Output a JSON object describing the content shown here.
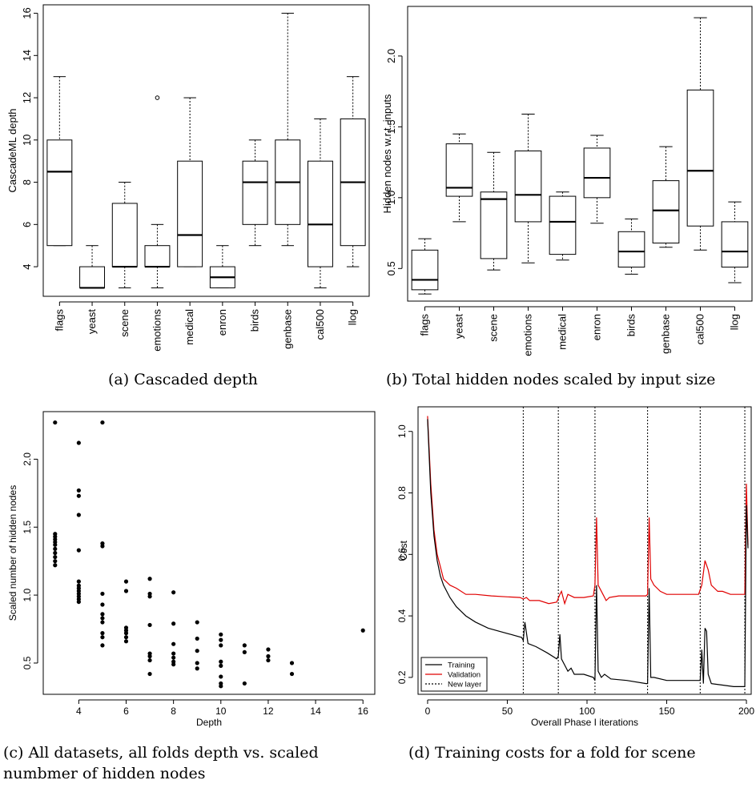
{
  "captions": {
    "a": "(a) Cascaded depth",
    "b": "(b) Total hidden nodes scaled by input size",
    "c_line1": "(c) All datasets, all folds depth vs. scaled",
    "c_line2": "numbmer of hidden nodes",
    "d": "(d) Training costs for a fold for scene"
  },
  "chart_data": [
    {
      "id": "a",
      "type": "boxplot",
      "title": "",
      "xlabel": "",
      "ylabel": "CascadeML depth",
      "ylim": [
        2.6,
        16.4
      ],
      "yticks": [
        4,
        6,
        8,
        10,
        12,
        14,
        16
      ],
      "categories": [
        "flags",
        "yeast",
        "scene",
        "emotions",
        "medical",
        "enron",
        "birds",
        "genbase",
        "cal500",
        "llog"
      ],
      "boxes": [
        {
          "min": 5,
          "q1": 5,
          "median": 8.5,
          "q3": 10,
          "max": 13
        },
        {
          "min": 3,
          "q1": 3,
          "median": 3,
          "q3": 4,
          "max": 5
        },
        {
          "min": 3,
          "q1": 4,
          "median": 4,
          "q3": 7,
          "max": 8
        },
        {
          "min": 3,
          "q1": 4,
          "median": 4,
          "q3": 5,
          "max": 6,
          "outliers": [
            12
          ]
        },
        {
          "min": 4,
          "q1": 4,
          "median": 5.5,
          "q3": 9,
          "max": 12
        },
        {
          "min": 3,
          "q1": 3,
          "median": 3.5,
          "q3": 4,
          "max": 5
        },
        {
          "min": 5,
          "q1": 6,
          "median": 8,
          "q3": 9,
          "max": 10
        },
        {
          "min": 5,
          "q1": 6,
          "median": 8,
          "q3": 10,
          "max": 16
        },
        {
          "min": 3,
          "q1": 4,
          "median": 6,
          "q3": 9,
          "max": 11
        },
        {
          "min": 4,
          "q1": 5,
          "median": 8,
          "q3": 11,
          "max": 13
        }
      ]
    },
    {
      "id": "b",
      "type": "boxplot",
      "title": "",
      "xlabel": "",
      "ylabel": "Hidden nodes w.r.t. inputs",
      "ylim": [
        0.27,
        2.35
      ],
      "yticks": [
        0.5,
        1.0,
        1.5,
        2.0
      ],
      "ytick_labels": [
        "0.5",
        "1.0",
        "1.5",
        "2.0"
      ],
      "categories": [
        "flags",
        "yeast",
        "scene",
        "emotions",
        "medical",
        "enron",
        "birds",
        "genbase",
        "cal500",
        "llog"
      ],
      "boxes": [
        {
          "min": 0.32,
          "q1": 0.35,
          "median": 0.42,
          "q3": 0.63,
          "max": 0.71
        },
        {
          "min": 0.83,
          "q1": 1.01,
          "median": 1.07,
          "q3": 1.38,
          "max": 1.45
        },
        {
          "min": 0.49,
          "q1": 0.57,
          "median": 0.99,
          "q3": 1.04,
          "max": 1.32
        },
        {
          "min": 0.54,
          "q1": 0.83,
          "median": 1.02,
          "q3": 1.33,
          "max": 1.59
        },
        {
          "min": 0.56,
          "q1": 0.6,
          "median": 0.83,
          "q3": 1.01,
          "max": 1.04
        },
        {
          "min": 0.82,
          "q1": 1.0,
          "median": 1.14,
          "q3": 1.35,
          "max": 1.44
        },
        {
          "min": 0.46,
          "q1": 0.51,
          "median": 0.62,
          "q3": 0.76,
          "max": 0.85
        },
        {
          "min": 0.65,
          "q1": 0.68,
          "median": 0.91,
          "q3": 1.12,
          "max": 1.36
        },
        {
          "min": 0.63,
          "q1": 0.8,
          "median": 1.19,
          "q3": 1.76,
          "max": 2.27
        },
        {
          "min": 0.4,
          "q1": 0.51,
          "median": 0.62,
          "q3": 0.83,
          "max": 0.97
        }
      ]
    },
    {
      "id": "c",
      "type": "scatter",
      "title": "",
      "xlabel": "Depth",
      "ylabel": "Scaled number of hidden nodes",
      "xlim": [
        2.5,
        16.5
      ],
      "ylim": [
        0.27,
        2.35
      ],
      "xticks": [
        4,
        6,
        8,
        10,
        12,
        14,
        16
      ],
      "yticks": [
        0.5,
        1.0,
        1.5,
        2.0
      ],
      "ytick_labels": [
        "0.5",
        "1.0",
        "1.5",
        "2.0"
      ],
      "points": [
        [
          3,
          2.27
        ],
        [
          3,
          1.45
        ],
        [
          3,
          1.43
        ],
        [
          3,
          1.41
        ],
        [
          3,
          1.39
        ],
        [
          3,
          1.37
        ],
        [
          3,
          1.34
        ],
        [
          3,
          1.31
        ],
        [
          3,
          1.28
        ],
        [
          3,
          1.25
        ],
        [
          3,
          1.22
        ],
        [
          4,
          2.12
        ],
        [
          4,
          1.77
        ],
        [
          4,
          1.73
        ],
        [
          4,
          1.59
        ],
        [
          4,
          1.33
        ],
        [
          4,
          1.1
        ],
        [
          4,
          1.07
        ],
        [
          4,
          1.05
        ],
        [
          4,
          1.03
        ],
        [
          4,
          1.01
        ],
        [
          4,
          0.99
        ],
        [
          4,
          0.97
        ],
        [
          4,
          0.95
        ],
        [
          5,
          2.27
        ],
        [
          5,
          1.38
        ],
        [
          5,
          1.36
        ],
        [
          5,
          1.01
        ],
        [
          5,
          0.93
        ],
        [
          5,
          0.86
        ],
        [
          5,
          0.83
        ],
        [
          5,
          0.8
        ],
        [
          5,
          0.72
        ],
        [
          5,
          0.69
        ],
        [
          5,
          0.63
        ],
        [
          6,
          1.1
        ],
        [
          6,
          1.03
        ],
        [
          6,
          0.76
        ],
        [
          6,
          0.74
        ],
        [
          6,
          0.72
        ],
        [
          6,
          0.69
        ],
        [
          6,
          0.66
        ],
        [
          7,
          1.12
        ],
        [
          7,
          1.01
        ],
        [
          7,
          0.99
        ],
        [
          7,
          0.78
        ],
        [
          7,
          0.57
        ],
        [
          7,
          0.55
        ],
        [
          7,
          0.52
        ],
        [
          7,
          0.42
        ],
        [
          8,
          1.02
        ],
        [
          8,
          0.79
        ],
        [
          8,
          0.64
        ],
        [
          8,
          0.57
        ],
        [
          8,
          0.54
        ],
        [
          8,
          0.51
        ],
        [
          8,
          0.49
        ],
        [
          9,
          0.8
        ],
        [
          9,
          0.68
        ],
        [
          9,
          0.59
        ],
        [
          9,
          0.5
        ],
        [
          9,
          0.46
        ],
        [
          10,
          0.71
        ],
        [
          10,
          0.67
        ],
        [
          10,
          0.63
        ],
        [
          10,
          0.51
        ],
        [
          10,
          0.48
        ],
        [
          10,
          0.4
        ],
        [
          10,
          0.35
        ],
        [
          10,
          0.33
        ],
        [
          11,
          0.63
        ],
        [
          11,
          0.58
        ],
        [
          11,
          0.35
        ],
        [
          12,
          0.6
        ],
        [
          12,
          0.55
        ],
        [
          12,
          0.52
        ],
        [
          13,
          0.5
        ],
        [
          13,
          0.42
        ],
        [
          16,
          0.74
        ]
      ]
    },
    {
      "id": "d",
      "type": "line",
      "title": "",
      "xlabel": "Overall Phase I iterations",
      "ylabel": "Cost",
      "xlim": [
        -6,
        203
      ],
      "ylim": [
        0.145,
        1.08
      ],
      "xticks": [
        0,
        50,
        100,
        150,
        200
      ],
      "yticks": [
        0.2,
        0.4,
        0.6,
        0.8,
        1.0
      ],
      "ytick_labels": [
        "0.2",
        "0.4",
        "0.6",
        "0.8",
        "1.0"
      ],
      "new_layer_x": [
        60,
        82,
        105,
        138,
        171,
        199
      ],
      "legend": {
        "position": "bottom-left",
        "entries": [
          "Training",
          "Validation",
          "New layer"
        ]
      },
      "series": [
        {
          "name": "Training",
          "color": "#000000",
          "points": [
            [
              0,
              1.04
            ],
            [
              2,
              0.8
            ],
            [
              4,
              0.66
            ],
            [
              6,
              0.58
            ],
            [
              8,
              0.53
            ],
            [
              10,
              0.5
            ],
            [
              14,
              0.46
            ],
            [
              18,
              0.43
            ],
            [
              24,
              0.4
            ],
            [
              30,
              0.38
            ],
            [
              38,
              0.36
            ],
            [
              45,
              0.35
            ],
            [
              52,
              0.34
            ],
            [
              59,
              0.33
            ],
            [
              60,
              0.32
            ],
            [
              61,
              0.38
            ],
            [
              63,
              0.31
            ],
            [
              68,
              0.3
            ],
            [
              75,
              0.28
            ],
            [
              81,
              0.26
            ],
            [
              82,
              0.27
            ],
            [
              83,
              0.34
            ],
            [
              84,
              0.26
            ],
            [
              86,
              0.24
            ],
            [
              88,
              0.22
            ],
            [
              90,
              0.23
            ],
            [
              92,
              0.21
            ],
            [
              98,
              0.21
            ],
            [
              104,
              0.2
            ],
            [
              105,
              0.19
            ],
            [
              106,
              0.5
            ],
            [
              107,
              0.22
            ],
            [
              109,
              0.2
            ],
            [
              111,
              0.21
            ],
            [
              115,
              0.195
            ],
            [
              125,
              0.19
            ],
            [
              137,
              0.18
            ],
            [
              138,
              0.18
            ],
            [
              139,
              0.49
            ],
            [
              140,
              0.2
            ],
            [
              142,
              0.2
            ],
            [
              150,
              0.19
            ],
            [
              160,
              0.19
            ],
            [
              170,
              0.19
            ],
            [
              171,
              0.19
            ],
            [
              172,
              0.29
            ],
            [
              173,
              0.18
            ],
            [
              174,
              0.36
            ],
            [
              175,
              0.35
            ],
            [
              176,
              0.21
            ],
            [
              178,
              0.18
            ],
            [
              185,
              0.175
            ],
            [
              192,
              0.17
            ],
            [
              198,
              0.17
            ],
            [
              199,
              0.17
            ],
            [
              200,
              0.76
            ],
            [
              201,
              0.62
            ]
          ]
        },
        {
          "name": "Validation",
          "color": "#e00000",
          "points": [
            [
              0,
              1.05
            ],
            [
              2,
              0.83
            ],
            [
              4,
              0.68
            ],
            [
              6,
              0.6
            ],
            [
              8,
              0.56
            ],
            [
              10,
              0.52
            ],
            [
              14,
              0.5
            ],
            [
              18,
              0.49
            ],
            [
              24,
              0.47
            ],
            [
              30,
              0.47
            ],
            [
              40,
              0.465
            ],
            [
              50,
              0.462
            ],
            [
              58,
              0.46
            ],
            [
              60,
              0.455
            ],
            [
              62,
              0.46
            ],
            [
              64,
              0.45
            ],
            [
              70,
              0.45
            ],
            [
              76,
              0.44
            ],
            [
              81,
              0.445
            ],
            [
              83,
              0.47
            ],
            [
              84,
              0.48
            ],
            [
              86,
              0.44
            ],
            [
              88,
              0.47
            ],
            [
              92,
              0.46
            ],
            [
              98,
              0.46
            ],
            [
              104,
              0.465
            ],
            [
              105,
              0.5
            ],
            [
              106,
              0.72
            ],
            [
              107,
              0.5
            ],
            [
              110,
              0.47
            ],
            [
              112,
              0.45
            ],
            [
              114,
              0.46
            ],
            [
              120,
              0.465
            ],
            [
              130,
              0.465
            ],
            [
              137,
              0.465
            ],
            [
              138,
              0.47
            ],
            [
              139,
              0.72
            ],
            [
              140,
              0.52
            ],
            [
              142,
              0.5
            ],
            [
              146,
              0.48
            ],
            [
              150,
              0.47
            ],
            [
              160,
              0.47
            ],
            [
              170,
              0.47
            ],
            [
              172,
              0.5
            ],
            [
              174,
              0.58
            ],
            [
              176,
              0.55
            ],
            [
              178,
              0.5
            ],
            [
              182,
              0.48
            ],
            [
              185,
              0.48
            ],
            [
              190,
              0.47
            ],
            [
              198,
              0.47
            ],
            [
              199,
              0.47
            ],
            [
              200,
              0.83
            ],
            [
              201,
              0.63
            ]
          ]
        }
      ]
    }
  ]
}
